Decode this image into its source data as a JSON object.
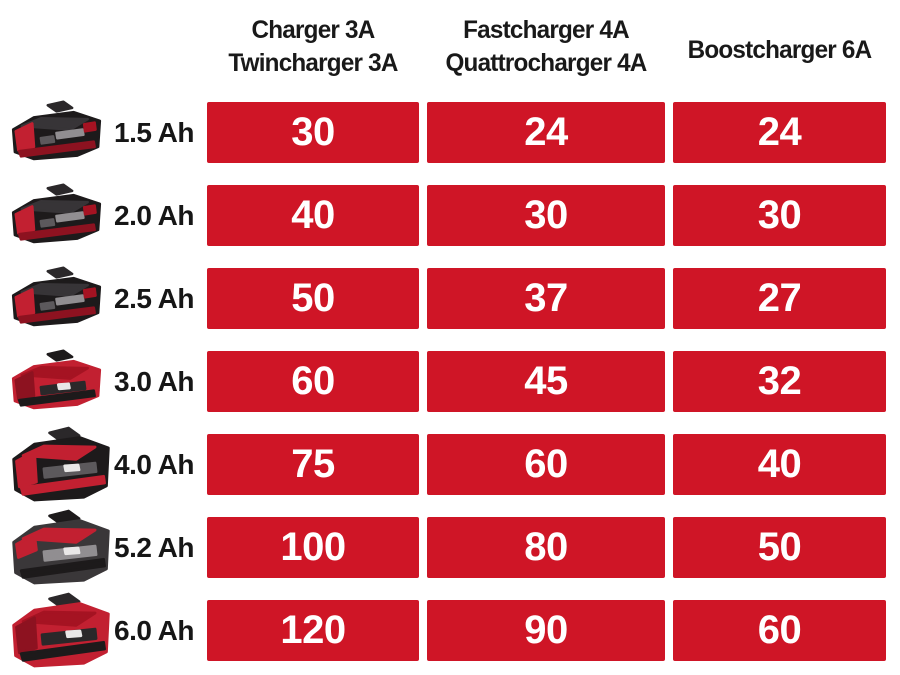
{
  "page": {
    "background": "#ffffff"
  },
  "palette": {
    "cell_red": "#cf1526",
    "header_text": "#191919",
    "capacity_text": "#161616",
    "cell_text": "#ffffff",
    "battery_colors": {
      "black": "#1d1a1b",
      "black2": "#2b282a",
      "black3": "#373437",
      "dark": "#3a3739",
      "red": "#c22031",
      "red2": "#a51322",
      "darkred": "#8d1220",
      "gray": "#918e91",
      "gray2": "#5c595c",
      "white": "#e9e7e7"
    }
  },
  "header": {
    "columns": [
      {
        "id": "charger-3a",
        "lines": [
          "Charger 3A",
          "Twincharger 3A"
        ]
      },
      {
        "id": "fastcharger-4a",
        "lines": [
          "Fastcharger 4A",
          "Quattrocharger 4A"
        ]
      },
      {
        "id": "boostcharger-6a",
        "lines": [
          "Boostcharger 6A"
        ]
      }
    ]
  },
  "rows": [
    {
      "capacity": "1.5 Ah",
      "battery": {
        "icon": "battery-photo-icon",
        "variant": "slim-black",
        "size": "small"
      },
      "values": [
        "30",
        "24",
        "24"
      ]
    },
    {
      "capacity": "2.0 Ah",
      "battery": {
        "icon": "battery-photo-icon",
        "variant": "slim-black",
        "size": "small"
      },
      "values": [
        "40",
        "30",
        "30"
      ]
    },
    {
      "capacity": "2.5 Ah",
      "battery": {
        "icon": "battery-photo-icon",
        "variant": "slim-black",
        "size": "small"
      },
      "values": [
        "50",
        "37",
        "27"
      ]
    },
    {
      "capacity": "3.0 Ah",
      "battery": {
        "icon": "battery-photo-icon",
        "variant": "slim-red",
        "size": "small"
      },
      "values": [
        "60",
        "45",
        "32"
      ]
    },
    {
      "capacity": "4.0 Ah",
      "battery": {
        "icon": "battery-photo-icon",
        "variant": "large-black-redtop",
        "size": "large"
      },
      "values": [
        "75",
        "60",
        "40"
      ]
    },
    {
      "capacity": "5.2 Ah",
      "battery": {
        "icon": "battery-photo-icon",
        "variant": "large-redtop-dark",
        "size": "large"
      },
      "values": [
        "100",
        "80",
        "50"
      ]
    },
    {
      "capacity": "6.0 Ah",
      "battery": {
        "icon": "battery-photo-icon",
        "variant": "large-red",
        "size": "large"
      },
      "values": [
        "120",
        "90",
        "60"
      ]
    }
  ],
  "chart_data": {
    "type": "table",
    "title": "",
    "columns": [
      "Charger 3A / Twincharger 3A",
      "Fastcharger 4A / Quattrocharger 4A",
      "Boostcharger 6A"
    ],
    "row_labels": [
      "1.5 Ah",
      "2.0 Ah",
      "2.5 Ah",
      "3.0 Ah",
      "4.0 Ah",
      "5.2 Ah",
      "6.0 Ah"
    ],
    "values": [
      [
        30,
        24,
        24
      ],
      [
        40,
        30,
        30
      ],
      [
        50,
        37,
        27
      ],
      [
        60,
        45,
        32
      ],
      [
        75,
        60,
        40
      ],
      [
        100,
        80,
        50
      ],
      [
        120,
        90,
        60
      ]
    ]
  }
}
